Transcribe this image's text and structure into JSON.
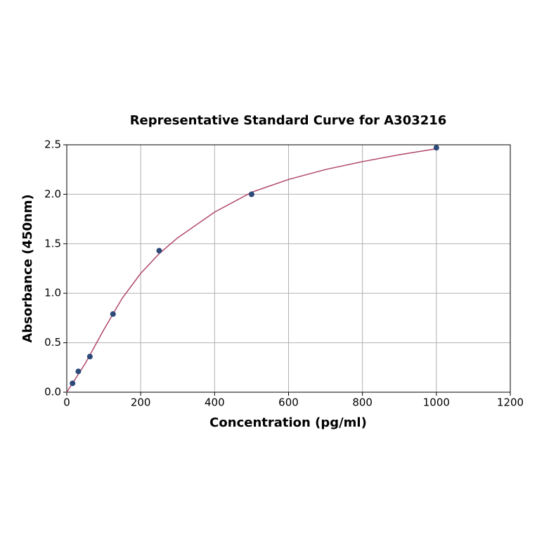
{
  "chart_data": {
    "type": "scatter",
    "title": "Representative Standard Curve for A303216",
    "x_label": "Concentration (pg/ml)",
    "y_label": "Absorbance (450nm)",
    "xlim": [
      0,
      1200
    ],
    "xticks": [
      0,
      200,
      400,
      600,
      800,
      1000,
      1200
    ],
    "ylim": [
      0,
      2.5
    ],
    "yticks": [
      {
        "value": 0,
        "label": "0.0"
      },
      0.5,
      {
        "value": 1,
        "label": "1.0"
      },
      1.5,
      {
        "value": 2,
        "label": "2.0"
      },
      2.5
    ],
    "grid": true,
    "series": [
      {
        "mode": "lines",
        "color": "#b0476a",
        "x": [
          0,
          50,
          100,
          150,
          200,
          250,
          300,
          400,
          500,
          600,
          700,
          800,
          900,
          1000
        ],
        "values": [
          0,
          0.29,
          0.63,
          0.95,
          1.2,
          1.4,
          1.56,
          1.82,
          2.02,
          2.15,
          2.25,
          2.33,
          2.4,
          2.46
        ]
      },
      {
        "mode": "markers",
        "color": "#2d4a7a",
        "x": [
          15.6,
          31.25,
          62.5,
          125,
          250,
          500,
          1000
        ],
        "values": [
          0.09,
          0.21,
          0.36,
          0.79,
          1.43,
          2.0,
          2.47
        ]
      }
    ]
  }
}
